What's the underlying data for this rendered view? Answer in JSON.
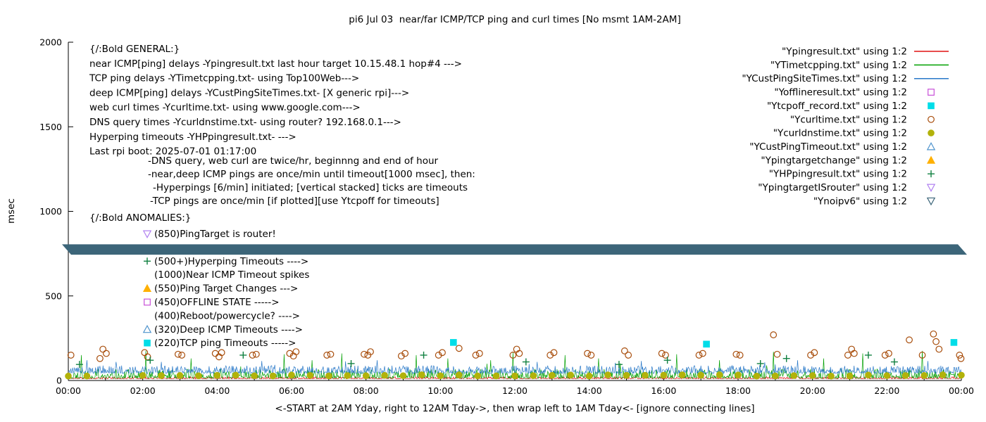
{
  "title": "pi6 Jul 03  near/far ICMP/TCP ping and curl times [No msmt 1AM-2AM]",
  "axes": {
    "ylabel": "msec",
    "xlabel": "<-START at 2AM Yday, right to 12AM Tday->, then wrap left to 1AM Tday<- [ignore connecting lines]",
    "y_ticks": [
      0,
      500,
      1000,
      1500,
      2000
    ],
    "y_range": [
      0,
      2000
    ],
    "x_range_hours": [
      0,
      24
    ],
    "x_ticks": [
      "00:00",
      "02:00",
      "04:00",
      "06:00",
      "08:00",
      "10:00",
      "12:00",
      "14:00",
      "16:00",
      "18:00",
      "20:00",
      "22:00",
      "00:00"
    ]
  },
  "legend": [
    {
      "label": "\"Ypingresult.txt\" using 1:2",
      "sample": "line",
      "color": "#e01010"
    },
    {
      "label": "\"YTimetcpping.txt\" using 1:2",
      "sample": "line",
      "color": "#00a000"
    },
    {
      "label": "\"YCustPingSiteTimes.txt\" using 1:2",
      "sample": "line",
      "color": "#2878c8"
    },
    {
      "label": "\"Yofflineresult.txt\" using 1:2",
      "sample": "square-open",
      "color": "#c850d8"
    },
    {
      "label": "\"Ytcpoff_record.txt\" using 1:2",
      "sample": "square-filled",
      "color": "#00dde8"
    },
    {
      "label": "\"Ycurltime.txt\" using 1:2",
      "sample": "circle-open",
      "color": "#a84d0b"
    },
    {
      "label": "\"Ycurldnstime.txt\" using 1:2",
      "sample": "circle-filled",
      "color": "#b2b20a"
    },
    {
      "label": "\"YCustPingTimeout.txt\" using 1:2",
      "sample": "triangle-up-open",
      "color": "#4f94cd"
    },
    {
      "label": "\"Ypingtargetchange\" using 1:2",
      "sample": "triangle-up-filled",
      "color": "#ffb000"
    },
    {
      "label": "\"YHPpingresult.txt\" using 1:2",
      "sample": "plus",
      "color": "#108040"
    },
    {
      "label": "\"YpingtargetISrouter\" using 1:2",
      "sample": "triangle-down-open",
      "color": "#b080f0"
    },
    {
      "label": "\"Ynoipv6\" using 1:2",
      "sample": "triangle-down-open",
      "color": "#3c6579"
    }
  ],
  "annotations": {
    "general": [
      "{/:Bold GENERAL:}",
      "near ICMP[ping] delays -Ypingresult.txt last hour target 10.15.48.1 hop#4 --->",
      "TCP ping delays -YTimetcpping.txt- using Top100Web--->",
      "deep ICMP[ping] delays -YCustPingSiteTimes.txt- [X generic rpi]--->",
      "web curl times -Ycurltime.txt- using www.google.com--->",
      "DNS query times -Ycurldnstime.txt- using router? 192.168.0.1--->",
      "Hyperping timeouts -YHPpingresult.txt- --->",
      "Last rpi boot: 2025-07-01 01:17:00"
    ],
    "general_sub": [
      {
        "text": "-DNS query, web curl are twice/hr, beginnng and end of hour",
        "indent": 210
      },
      {
        "text": "-near,deep ICMP pings are once/min until timeout[1000 msec], then:",
        "indent": 210
      },
      {
        "text": "-Hyperpings [6/min] initiated; [vertical stacked] ticks are timeouts",
        "indent": 217
      },
      {
        "text": "-TCP pings are once/min [if plotted][use Ytcpoff for timeouts]",
        "indent": 213
      }
    ],
    "anomalies_header": "{/:Bold ANOMALIES:}",
    "anomalies": [
      {
        "marker": "triangle-down-open",
        "color": "#b080f0",
        "label": "(850)PingTarget is router!"
      },
      {
        "marker": "none",
        "color": "",
        "label": "",
        "spacer": true
      },
      {
        "marker": "plus",
        "color": "#108040",
        "label": "(500+)Hyperping Timeouts ---->"
      },
      {
        "marker": "none",
        "color": "",
        "label": "(1000)Near ICMP Timeout spikes"
      },
      {
        "marker": "triangle-up-filled",
        "color": "#ffb000",
        "label": "(550)Ping Target Changes --->"
      },
      {
        "marker": "square-open",
        "color": "#c850d8",
        "label": "(450)OFFLINE STATE ----->"
      },
      {
        "marker": "none",
        "color": "",
        "label": "(400)Reboot/powercycle? ---->"
      },
      {
        "marker": "triangle-up-open",
        "color": "#4f94cd",
        "label": "(320)Deep ICMP Timeouts ---->"
      },
      {
        "marker": "square-filled",
        "color": "#00dde8",
        "label": "(220)TCP ping Timeouts ----->"
      }
    ]
  },
  "chart_data": {
    "type": "line",
    "title": "pi6 Jul 03  near/far ICMP/TCP ping and curl times [No msmt 1AM-2AM]",
    "xlabel": "<-START at 2AM Yday, right to 12AM Tday->, then wrap left to 1AM Tday<- [ignore connecting lines]",
    "ylabel": "msec",
    "ylim": [
      0,
      2000
    ],
    "xlim_hours": [
      0,
      24
    ],
    "grid": false,
    "legend_position": "top-right-outside-style",
    "series": [
      {
        "name": "Ypingresult.txt",
        "style": "line-noise",
        "color": "#e01010",
        "noise": {
          "seed": 11,
          "base": 10,
          "amp": 13,
          "pow": 2.2
        },
        "spikes": []
      },
      {
        "name": "YTimetcpping.txt",
        "style": "line-noise",
        "color": "#00a000",
        "noise": {
          "seed": 22,
          "base": 13,
          "amp": 55,
          "pow": 2.4
        },
        "spikes": [
          [
            0.35,
            150
          ],
          [
            2.08,
            175
          ],
          [
            3.3,
            130
          ],
          [
            5.8,
            155
          ],
          [
            6.55,
            120
          ],
          [
            7.35,
            160
          ],
          [
            9.35,
            150
          ],
          [
            10.2,
            130
          ],
          [
            11.35,
            120
          ],
          [
            11.95,
            165
          ],
          [
            13.35,
            150
          ],
          [
            14.25,
            130
          ],
          [
            16.35,
            155
          ],
          [
            17.5,
            120
          ],
          [
            18.95,
            170
          ],
          [
            20.3,
            130
          ],
          [
            21.35,
            160
          ],
          [
            22.95,
            175
          ]
        ]
      },
      {
        "name": "YCustPingSiteTimes.txt",
        "style": "line-noise",
        "color": "#2878c8",
        "noise": {
          "seed": 33,
          "base": 42,
          "amp": 46,
          "pow": 2.0
        },
        "spikes": [
          [
            0.5,
            120
          ],
          [
            2.5,
            110
          ],
          [
            5.2,
            115
          ],
          [
            8.3,
            120
          ],
          [
            12.6,
            110
          ],
          [
            15.4,
            115
          ],
          [
            19.6,
            120
          ],
          [
            23.1,
            115
          ]
        ]
      },
      {
        "name": "Ycurldnstime.txt",
        "style": "scatter-gen",
        "marker": "circle-filled",
        "color": "#b2b20a",
        "gen": {
          "from": 0,
          "to": 24,
          "step": 0.5,
          "skip": [
            1,
            1.5
          ],
          "value": 30,
          "jitter": 8,
          "seed": 7
        }
      },
      {
        "name": "Ycurltime.txt",
        "style": "scatter",
        "marker": "circle-open",
        "color": "#a84d0b",
        "points": [
          [
            0.07,
            150
          ],
          [
            0.85,
            130
          ],
          [
            0.93,
            185
          ],
          [
            1.02,
            160
          ],
          [
            2.05,
            165
          ],
          [
            2.13,
            140
          ],
          [
            2.95,
            155
          ],
          [
            3.05,
            150
          ],
          [
            3.95,
            160
          ],
          [
            4.05,
            140
          ],
          [
            4.12,
            165
          ],
          [
            4.95,
            150
          ],
          [
            5.05,
            155
          ],
          [
            5.95,
            160
          ],
          [
            6.05,
            145
          ],
          [
            6.12,
            170
          ],
          [
            6.95,
            150
          ],
          [
            7.05,
            155
          ],
          [
            7.95,
            155
          ],
          [
            8.05,
            150
          ],
          [
            8.12,
            170
          ],
          [
            8.95,
            145
          ],
          [
            9.05,
            160
          ],
          [
            9.95,
            150
          ],
          [
            10.05,
            165
          ],
          [
            10.5,
            190
          ],
          [
            10.95,
            150
          ],
          [
            11.05,
            160
          ],
          [
            11.95,
            150
          ],
          [
            12.05,
            185
          ],
          [
            12.12,
            160
          ],
          [
            12.95,
            150
          ],
          [
            13.05,
            165
          ],
          [
            13.95,
            160
          ],
          [
            14.05,
            150
          ],
          [
            14.95,
            175
          ],
          [
            15.05,
            150
          ],
          [
            15.95,
            160
          ],
          [
            16.05,
            150
          ],
          [
            16.95,
            150
          ],
          [
            17.05,
            160
          ],
          [
            17.95,
            155
          ],
          [
            18.05,
            150
          ],
          [
            18.95,
            270
          ],
          [
            19.05,
            155
          ],
          [
            19.95,
            150
          ],
          [
            20.05,
            165
          ],
          [
            20.95,
            150
          ],
          [
            21.05,
            185
          ],
          [
            21.12,
            160
          ],
          [
            21.95,
            150
          ],
          [
            22.05,
            160
          ],
          [
            22.6,
            240
          ],
          [
            22.95,
            150
          ],
          [
            23.25,
            275
          ],
          [
            23.32,
            230
          ],
          [
            23.4,
            185
          ],
          [
            23.95,
            150
          ],
          [
            23.99,
            130
          ]
        ]
      },
      {
        "name": "YHPpingresult.txt",
        "style": "scatter",
        "marker": "plus",
        "color": "#108040",
        "points": [
          [
            0.3,
            95
          ],
          [
            2.2,
            120
          ],
          [
            4.7,
            150
          ],
          [
            7.6,
            100
          ],
          [
            9.55,
            150
          ],
          [
            12.3,
            110
          ],
          [
            14.8,
            95
          ],
          [
            16.1,
            120
          ],
          [
            18.6,
            100
          ],
          [
            19.3,
            130
          ],
          [
            21.5,
            150
          ],
          [
            22.2,
            110
          ]
        ]
      },
      {
        "name": "Ytcpoff_record.txt",
        "style": "scatter",
        "marker": "square-filled",
        "color": "#00dde8",
        "points": [
          [
            10.35,
            225
          ],
          [
            17.15,
            215
          ],
          [
            23.8,
            225
          ]
        ]
      },
      {
        "name": "Ynoipv6",
        "style": "band",
        "color": "#3c6579",
        "y_top": 805,
        "y_bottom": 744,
        "x_from": 0,
        "x_to": 24
      }
    ]
  }
}
